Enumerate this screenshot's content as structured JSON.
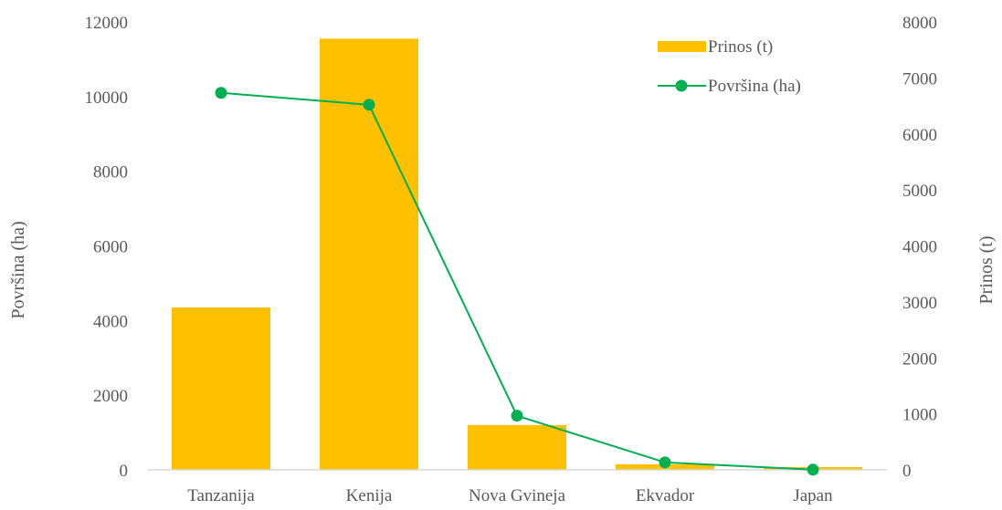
{
  "chart_data": {
    "type": "bar",
    "categories": [
      "Tanzanija",
      "Kenija",
      "Nova Gvineja",
      "Ekvador",
      "Japan"
    ],
    "series": [
      {
        "name": "Prinos (t)",
        "type": "bar",
        "axis": "right",
        "color": "#FFC000",
        "values": [
          2900,
          7700,
          800,
          100,
          50
        ]
      },
      {
        "name": "Površina (ha)",
        "type": "line",
        "axis": "left",
        "color": "#00B050",
        "values": [
          10100,
          9780,
          1450,
          200,
          5
        ]
      }
    ],
    "ylabel_left": "Površina (ha)",
    "ylabel_right": "Prinos (t)",
    "ylim_left": [
      0,
      12000
    ],
    "ylim_right": [
      0,
      8000
    ],
    "yticks_left": [
      "0",
      "2000",
      "4000",
      "6000",
      "8000",
      "10000",
      "12000"
    ],
    "yticks_right": [
      "0",
      "1000",
      "2000",
      "3000",
      "4000",
      "5000",
      "6000",
      "7000",
      "8000"
    ],
    "grid": false,
    "legend_position": "top-right"
  }
}
